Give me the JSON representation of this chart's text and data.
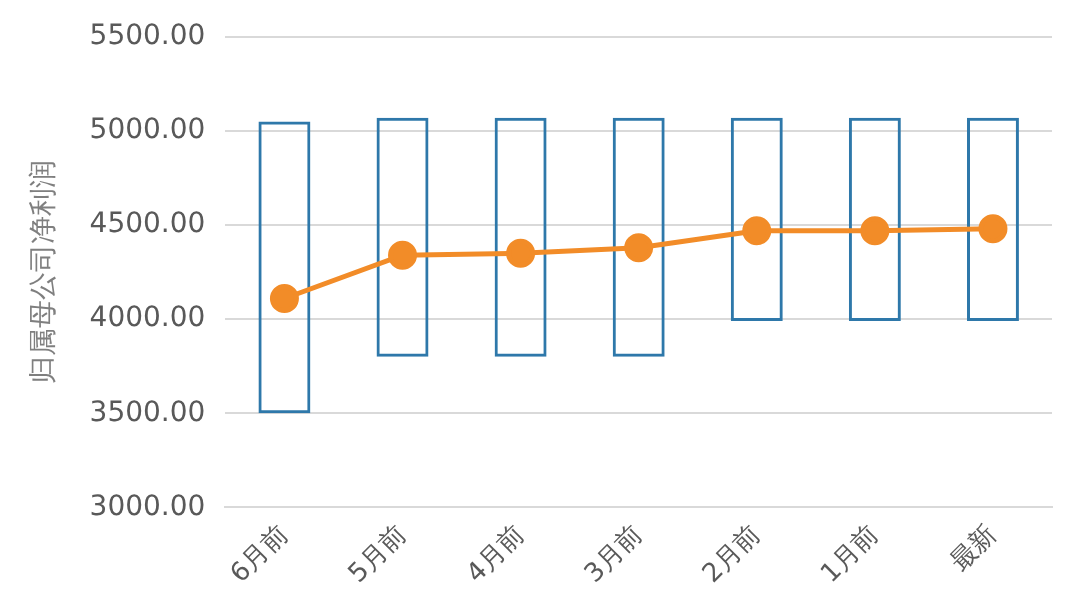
{
  "chart_data": {
    "type": "bar",
    "ylabel": "归属母公司净利润",
    "categories": [
      "6月前",
      "5月前",
      "4月前",
      "3月前",
      "2月前",
      "1月前",
      "最新"
    ],
    "series": [
      {
        "color": "#2e78aa",
        "base": [
          3500,
          3800,
          3800,
          3800,
          3990,
          3990,
          3990
        ],
        "values": [
          1550,
          1270,
          1270,
          1270,
          1080,
          1080,
          1080
        ]
      },
      {
        "type": "line",
        "color": "#f28c28",
        "values": [
          4110,
          4340,
          4350,
          4380,
          4470,
          4470,
          4480
        ]
      }
    ],
    "ylim": [
      3000,
      5500
    ],
    "yticks": [
      {
        "value": 3000,
        "label": "3000.00"
      },
      {
        "value": 3500,
        "label": "3500.00"
      },
      {
        "value": 4000,
        "label": "4000.00"
      },
      {
        "value": 4500,
        "label": "4500.00"
      },
      {
        "value": 5000,
        "label": "5000.00"
      },
      {
        "value": 5500,
        "label": "5500.00"
      }
    ],
    "grid": "y",
    "legend": false,
    "marker": "circle",
    "line_style": "solid"
  }
}
